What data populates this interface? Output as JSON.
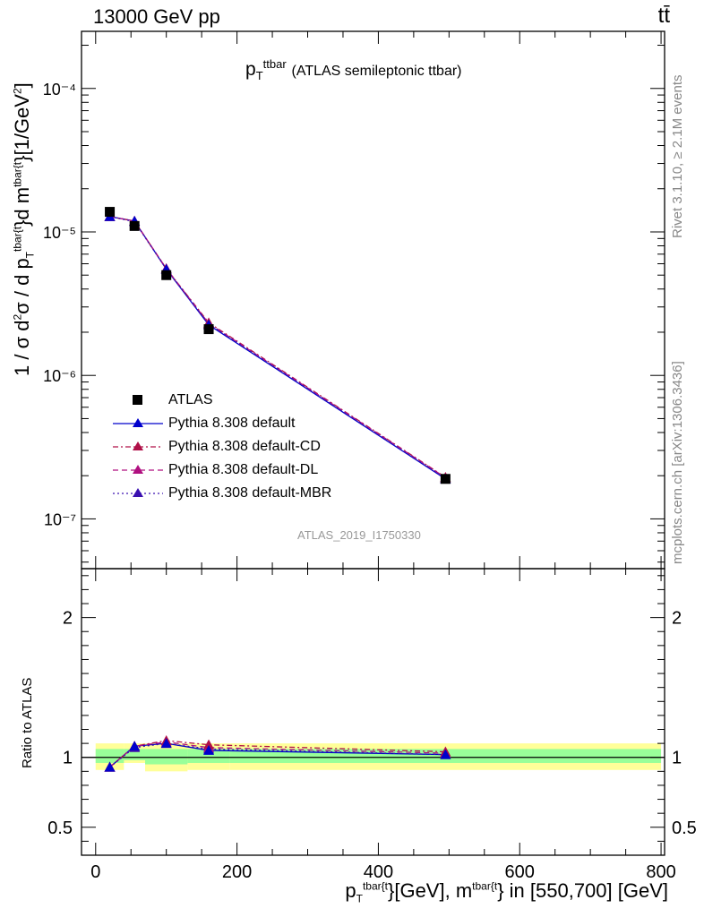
{
  "header": {
    "left": "13000 GeV pp",
    "right": "tt̄"
  },
  "plot_title": {
    "main": "p",
    "main_sub": "T",
    "main_sup": "ttbar",
    "description": "(ATLAS semileptonic ttbar)"
  },
  "watermark": "ATLAS_2019_I1750330",
  "side_labels": {
    "rivet": "Rivet 3.1.10, ≥ 2.1M events",
    "mcplots": "mcplots.cern.ch [arXiv:1306.3436]"
  },
  "y_axis_top": {
    "p1": "1 / σ d",
    "p1_sup": "2",
    "p2": "σ / d p",
    "p2_sub": "T",
    "p2_sup": "tbar{t",
    "p3": "}d m",
    "p3_sup": "tbar{t",
    "p4": "}[1/GeV",
    "p4_sup": "2",
    "p5": "]"
  },
  "y_axis_bottom": "Ratio to ATLAS",
  "x_axis": {
    "p1": "p",
    "p1_sub": "T",
    "p1_sup": "tbar{t",
    "p2": "}[GeV], m",
    "p2_sup": "tbar{t",
    "p3": "} in [550,700] [GeV]"
  },
  "legend": [
    {
      "label": "ATLAS"
    },
    {
      "label": "Pythia 8.308 default"
    },
    {
      "label": "Pythia 8.308 default-CD"
    },
    {
      "label": "Pythia 8.308 default-DL"
    },
    {
      "label": "Pythia 8.308 default-MBR"
    }
  ],
  "chart_data": {
    "type": "line",
    "x_ticks": [
      0,
      200,
      400,
      600,
      800
    ],
    "xlim": [
      -20,
      805
    ],
    "top_panel": {
      "yscale": "log",
      "ylim": [
        4.5e-08,
        0.00025
      ],
      "y_ticks": [
        {
          "value": 1e-07,
          "label": "10⁻⁷"
        },
        {
          "value": 1e-06,
          "label": "10⁻⁶"
        },
        {
          "value": 1e-05,
          "label": "10⁻⁵"
        },
        {
          "value": 0.0001,
          "label": "10⁻⁴"
        }
      ]
    },
    "bottom_panel": {
      "ylim": [
        0.3,
        2.35
      ],
      "y_ticks": [
        {
          "value": 0.5,
          "label": "0.5"
        },
        {
          "value": 1,
          "label": "1"
        },
        {
          "value": 2,
          "label": "2"
        }
      ],
      "bands": [
        {
          "x0": 0,
          "x1": 40,
          "yellow": [
            0.91,
            1.1
          ],
          "green": [
            0.96,
            1.06
          ]
        },
        {
          "x0": 40,
          "x1": 70,
          "yellow": [
            0.96,
            1.1
          ],
          "green": [
            0.98,
            1.06
          ]
        },
        {
          "x0": 70,
          "x1": 130,
          "yellow": [
            0.9,
            1.1
          ],
          "green": [
            0.95,
            1.06
          ]
        },
        {
          "x0": 130,
          "x1": 190,
          "yellow": [
            0.91,
            1.1
          ],
          "green": [
            0.96,
            1.06
          ]
        },
        {
          "x0": 190,
          "x1": 800,
          "yellow": [
            0.91,
            1.1
          ],
          "green": [
            0.96,
            1.06
          ]
        }
      ]
    },
    "x": [
      20,
      55,
      100,
      160,
      495
    ],
    "atlas": {
      "name": "ATLAS",
      "values": [
        1.38e-05,
        1.1e-05,
        5e-06,
        2.1e-06,
        1.9e-07
      ],
      "color": "#000000"
    },
    "series": [
      {
        "name": "Pythia 8.308 default",
        "color": "#0000cc",
        "dash": "",
        "values": [
          1.28e-05,
          1.19e-05,
          5.5e-06,
          2.25e-06,
          1.9e-07
        ],
        "ratio": [
          0.93,
          1.08,
          1.1,
          1.05,
          1.02
        ]
      },
      {
        "name": "Pythia 8.308 default-CD",
        "color": "#b01048",
        "dash": "6,3,2,3",
        "values": [
          1.28e-05,
          1.19e-05,
          5.55e-06,
          2.33e-06,
          1.95e-07
        ],
        "ratio": [
          0.93,
          1.08,
          1.12,
          1.09,
          1.04
        ]
      },
      {
        "name": "Pythia 8.308 default-DL",
        "color": "#b01080",
        "dash": "6,4",
        "values": [
          1.28e-05,
          1.19e-05,
          5.55e-06,
          2.3e-06,
          1.94e-07
        ],
        "ratio": [
          0.93,
          1.08,
          1.11,
          1.07,
          1.03
        ]
      },
      {
        "name": "Pythia 8.308 default-MBR",
        "color": "#3a10b0",
        "dash": "2,3",
        "values": [
          1.28e-05,
          1.18e-05,
          5.5e-06,
          2.28e-06,
          1.91e-07
        ],
        "ratio": [
          0.93,
          1.07,
          1.1,
          1.06,
          1.02
        ]
      }
    ]
  }
}
